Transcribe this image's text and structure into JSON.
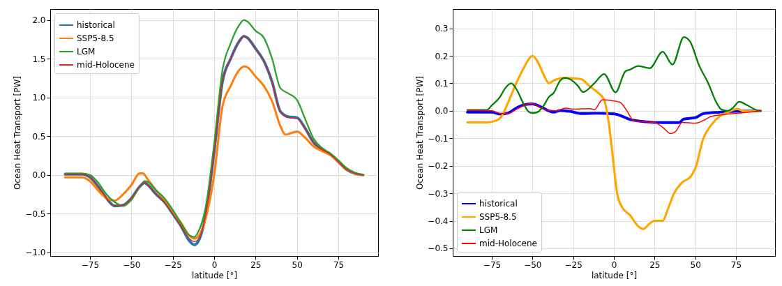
{
  "chart_data": [
    {
      "type": "line",
      "xlabel": "latitude [°]",
      "ylabel": "Ocean Heat Transport [PW]",
      "xlim": [
        -99,
        99
      ],
      "ylim": [
        -1.045,
        2.14
      ],
      "xticks": [
        {
          "value": -75,
          "label": "−75"
        },
        {
          "value": -50,
          "label": "−50"
        },
        {
          "value": -25,
          "label": "−25"
        },
        0,
        25,
        50,
        75
      ],
      "yticks": [
        {
          "value": -1.0,
          "label": "−1.0"
        },
        {
          "value": -0.5,
          "label": "−0.5"
        },
        {
          "value": 0,
          "label": "0.0"
        },
        {
          "value": 0.5,
          "label": "0.5"
        },
        {
          "value": 1.0,
          "label": "1.0"
        },
        {
          "value": 1.5,
          "label": "1.5"
        },
        {
          "value": 2.0,
          "label": "2.0"
        }
      ],
      "grid": true,
      "legend": "top left",
      "line_style": "solid",
      "marker": "none",
      "series": [
        {
          "name": "historical",
          "color": "#1f77b4",
          "x": [
            -90,
            -80,
            -75,
            -70,
            -65,
            -60,
            -55,
            -50,
            -45,
            -42,
            -40,
            -35,
            -30,
            -25,
            -20,
            -15,
            -12,
            -10,
            -5,
            0,
            5,
            10,
            15,
            18,
            20,
            25,
            30,
            35,
            40,
            45,
            50,
            55,
            60,
            65,
            70,
            75,
            80,
            85,
            90
          ],
          "values": [
            0.01,
            0.01,
            -0.03,
            -0.15,
            -0.3,
            -0.4,
            -0.39,
            -0.3,
            -0.15,
            -0.1,
            -0.13,
            -0.25,
            -0.35,
            -0.5,
            -0.66,
            -0.85,
            -0.9,
            -0.87,
            -0.5,
            0.3,
            1.2,
            1.5,
            1.72,
            1.79,
            1.77,
            1.63,
            1.47,
            1.2,
            0.82,
            0.75,
            0.74,
            0.6,
            0.42,
            0.33,
            0.27,
            0.17,
            0.07,
            0.02,
            0.0
          ]
        },
        {
          "name": "SSP5-8.5",
          "color": "#ff7f0e",
          "x": [
            -90,
            -80,
            -75,
            -70,
            -65,
            -60,
            -55,
            -50,
            -45,
            -43,
            -40,
            -35,
            -30,
            -25,
            -20,
            -15,
            -12,
            -10,
            -5,
            0,
            5,
            10,
            15,
            18,
            20,
            25,
            30,
            35,
            40,
            43,
            45,
            50,
            55,
            60,
            65,
            70,
            75,
            80,
            85,
            90
          ],
          "values": [
            -0.03,
            -0.03,
            -0.08,
            -0.2,
            -0.3,
            -0.33,
            -0.25,
            -0.13,
            0.02,
            0.02,
            -0.06,
            -0.2,
            -0.32,
            -0.48,
            -0.62,
            -0.78,
            -0.82,
            -0.8,
            -0.55,
            0.0,
            0.88,
            1.15,
            1.35,
            1.4,
            1.39,
            1.27,
            1.15,
            0.95,
            0.63,
            0.52,
            0.53,
            0.56,
            0.48,
            0.37,
            0.31,
            0.26,
            0.17,
            0.07,
            0.02,
            0.0
          ]
        },
        {
          "name": "LGM",
          "color": "#2ca02c",
          "x": [
            -90,
            -80,
            -75,
            -70,
            -65,
            -60,
            -55,
            -50,
            -45,
            -42,
            -40,
            -35,
            -30,
            -25,
            -20,
            -15,
            -12,
            -10,
            -5,
            0,
            5,
            10,
            15,
            18,
            20,
            25,
            30,
            35,
            40,
            45,
            50,
            55,
            60,
            65,
            70,
            75,
            80,
            85,
            90
          ],
          "values": [
            0.02,
            0.02,
            0.0,
            -0.1,
            -0.25,
            -0.35,
            -0.4,
            -0.32,
            -0.15,
            -0.08,
            -0.09,
            -0.2,
            -0.3,
            -0.45,
            -0.62,
            -0.78,
            -0.8,
            -0.75,
            -0.4,
            0.4,
            1.35,
            1.7,
            1.93,
            2.0,
            1.98,
            1.86,
            1.77,
            1.5,
            1.12,
            1.05,
            0.97,
            0.72,
            0.47,
            0.35,
            0.28,
            0.19,
            0.09,
            0.03,
            0.0
          ]
        },
        {
          "name": "mid-Holocene",
          "color": "#d62728",
          "x": [
            -90,
            -80,
            -75,
            -70,
            -65,
            -60,
            -55,
            -50,
            -45,
            -42,
            -40,
            -35,
            -30,
            -25,
            -20,
            -15,
            -12,
            -10,
            -5,
            0,
            5,
            10,
            15,
            18,
            20,
            25,
            30,
            35,
            40,
            45,
            50,
            55,
            60,
            65,
            70,
            75,
            80,
            85,
            90
          ],
          "values": [
            0.01,
            0.01,
            -0.03,
            -0.15,
            -0.3,
            -0.4,
            -0.39,
            -0.3,
            -0.15,
            -0.1,
            -0.13,
            -0.25,
            -0.35,
            -0.5,
            -0.66,
            -0.82,
            -0.86,
            -0.84,
            -0.5,
            0.3,
            1.2,
            1.5,
            1.72,
            1.79,
            1.77,
            1.63,
            1.47,
            1.2,
            0.82,
            0.74,
            0.73,
            0.6,
            0.42,
            0.33,
            0.27,
            0.17,
            0.07,
            0.02,
            0.0
          ]
        }
      ]
    },
    {
      "type": "line",
      "xlabel": "latitude [°]",
      "ylabel": "Ocean Heat Transport [PW]",
      "xlim": [
        -99,
        99
      ],
      "ylim": [
        -0.528,
        0.37
      ],
      "xticks": [
        {
          "value": -75,
          "label": "−75"
        },
        {
          "value": -50,
          "label": "−50"
        },
        {
          "value": -25,
          "label": "−25"
        },
        0,
        25,
        50,
        75
      ],
      "yticks": [
        {
          "value": -0.5,
          "label": "−0.5"
        },
        {
          "value": -0.4,
          "label": "−0.4"
        },
        {
          "value": -0.3,
          "label": "−0.3"
        },
        {
          "value": -0.2,
          "label": "−0.2"
        },
        {
          "value": -0.1,
          "label": "−0.1"
        },
        {
          "value": 0,
          "label": "0.0"
        },
        {
          "value": 0.1,
          "label": "0.1"
        },
        {
          "value": 0.2,
          "label": "0.2"
        },
        {
          "value": 0.3,
          "label": "0.3"
        }
      ],
      "grid": true,
      "legend": "bottom left",
      "line_style": "solid",
      "marker": "none",
      "series": [
        {
          "name": "historical",
          "color": "#0000ff",
          "x": [
            -90,
            -75,
            -70,
            -65,
            -60,
            -55,
            -50,
            -45,
            -40,
            -37,
            -33,
            -27,
            -20,
            -10,
            0,
            3,
            10,
            20,
            30,
            40,
            43,
            50,
            55,
            65,
            75,
            90
          ],
          "values": [
            -0.005,
            -0.005,
            -0.012,
            -0.008,
            0.01,
            0.022,
            0.025,
            0.015,
            0.0,
            -0.005,
            0.001,
            -0.002,
            -0.01,
            -0.009,
            -0.011,
            -0.015,
            -0.032,
            -0.04,
            -0.043,
            -0.043,
            -0.03,
            -0.025,
            -0.01,
            -0.005,
            -0.002,
            0.0
          ]
        },
        {
          "name": "SSP5-8.5",
          "color": "#ffa500",
          "x": [
            -90,
            -78,
            -72,
            -69,
            -65,
            -60,
            -55,
            -52,
            -50,
            -47,
            -43,
            -40,
            -37,
            -30,
            -25,
            -20,
            -15,
            -10,
            -6,
            -3,
            -1,
            2,
            5,
            10,
            15,
            18,
            22,
            25,
            30,
            33,
            37,
            42,
            47,
            50,
            55,
            60,
            65,
            70,
            76,
            80,
            90
          ],
          "values": [
            -0.042,
            -0.042,
            -0.035,
            -0.02,
            0.03,
            0.1,
            0.16,
            0.19,
            0.2,
            0.18,
            0.13,
            0.1,
            0.11,
            0.12,
            0.118,
            0.115,
            0.09,
            0.067,
            0.04,
            -0.05,
            -0.15,
            -0.3,
            -0.35,
            -0.38,
            -0.42,
            -0.43,
            -0.41,
            -0.4,
            -0.4,
            -0.36,
            -0.3,
            -0.26,
            -0.24,
            -0.21,
            -0.1,
            -0.05,
            -0.02,
            -0.005,
            0.007,
            -0.002,
            0.0
          ]
        },
        {
          "name": "LGM",
          "color": "#008000",
          "x": [
            -90,
            -78,
            -75,
            -70,
            -67,
            -63,
            -60,
            -55,
            -52,
            -50,
            -47,
            -43,
            -40,
            -37,
            -33,
            -30,
            -27,
            -22,
            -19,
            -12,
            -6,
            1,
            7,
            10,
            15,
            22,
            30,
            36,
            43,
            47,
            52,
            58,
            63,
            66,
            70,
            73,
            77,
            82,
            88,
            90
          ],
          "values": [
            0.003,
            0.003,
            0.02,
            0.05,
            0.08,
            0.1,
            0.08,
            0.02,
            -0.005,
            -0.008,
            -0.005,
            0.02,
            0.05,
            0.065,
            0.11,
            0.12,
            0.115,
            0.09,
            0.068,
            0.1,
            0.134,
            0.067,
            0.143,
            0.15,
            0.163,
            0.155,
            0.215,
            0.168,
            0.268,
            0.25,
            0.17,
            0.1,
            0.03,
            0.005,
            0.0,
            0.01,
            0.033,
            0.02,
            0.002,
            0.0
          ]
        },
        {
          "name": "mid-Holocene",
          "color": "#ff0000",
          "x": [
            -90,
            -75,
            -70,
            -65,
            -60,
            -55,
            -50,
            -45,
            -40,
            -35,
            -30,
            -25,
            -15,
            -12,
            -7,
            0,
            4,
            8,
            12,
            20,
            25,
            30,
            35,
            38,
            42,
            50,
            55,
            60,
            70,
            80,
            90
          ],
          "values": [
            0.002,
            0.0,
            -0.01,
            -0.01,
            0.005,
            0.02,
            0.026,
            0.01,
            0.002,
            0.0,
            0.01,
            0.006,
            0.008,
            0.004,
            0.04,
            0.036,
            0.03,
            0.0,
            -0.035,
            -0.04,
            -0.042,
            -0.06,
            -0.083,
            -0.075,
            -0.042,
            -0.045,
            -0.035,
            -0.02,
            -0.012,
            -0.007,
            0.0
          ]
        }
      ]
    }
  ]
}
